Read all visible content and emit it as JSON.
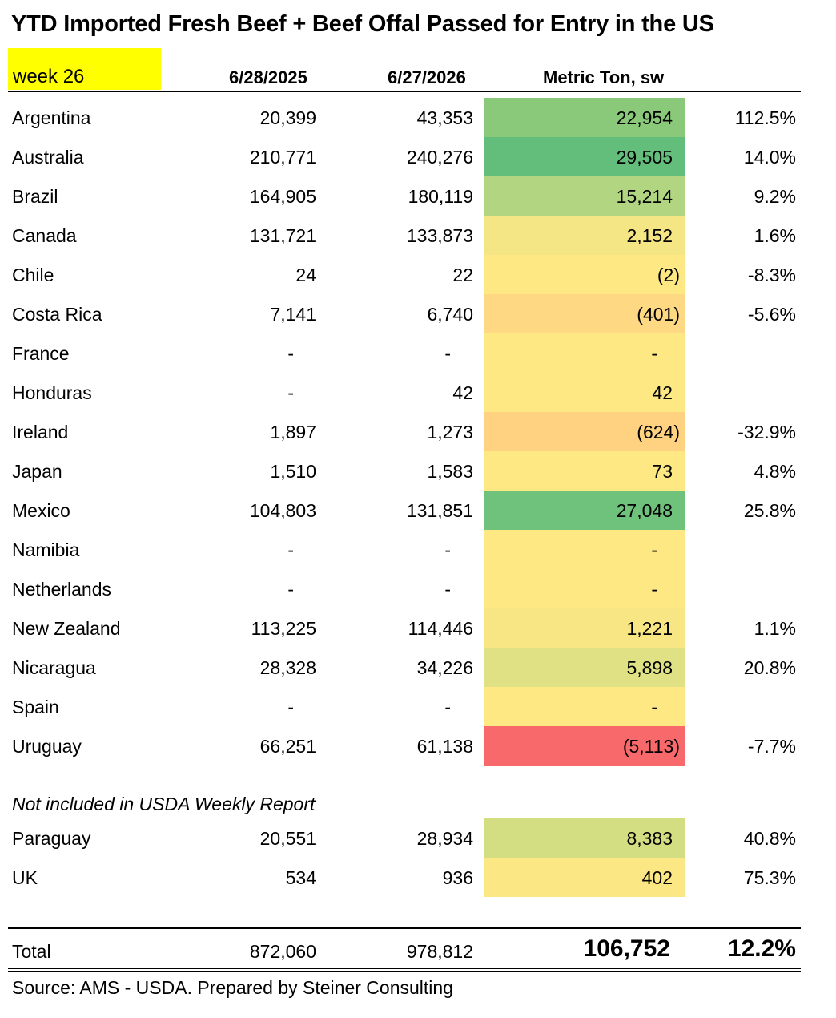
{
  "title": "YTD Imported Fresh Beef + Beef Offal Passed for Entry in the US",
  "week_label": "week 26",
  "headers": {
    "col1": "6/28/2025",
    "col2": "6/27/2026",
    "col3": "Metric Ton, sw"
  },
  "chart_data": {
    "type": "table",
    "title": "YTD Imported Fresh Beef + Beef Offal Passed for Entry in the US",
    "columns": [
      "",
      "6/28/2025",
      "6/27/2026",
      "Metric Ton, sw",
      ""
    ],
    "rows": [
      {
        "country": "Argentina",
        "y2025": "20,399",
        "y2026": "43,353",
        "change": "22,954",
        "pct": "112.5%",
        "color": "#8ac97a"
      },
      {
        "country": "Australia",
        "y2025": "210,771",
        "y2026": "240,276",
        "change": "29,505",
        "pct": "14.0%",
        "color": "#63be7b"
      },
      {
        "country": "Brazil",
        "y2025": "164,905",
        "y2026": "180,119",
        "change": "15,214",
        "pct": "9.2%",
        "color": "#b1d580"
      },
      {
        "country": "Canada",
        "y2025": "131,721",
        "y2026": "133,873",
        "change": "2,152",
        "pct": "1.6%",
        "color": "#f4e585"
      },
      {
        "country": "Chile",
        "y2025": "24",
        "y2026": "22",
        "change": "(2)",
        "pct": "-8.3%",
        "color": "#fde884"
      },
      {
        "country": "Costa Rica",
        "y2025": "7,141",
        "y2026": "6,740",
        "change": "(401)",
        "pct": "-5.6%",
        "color": "#fed882"
      },
      {
        "country": "France",
        "y2025": "-",
        "y2026": "-",
        "change": "-",
        "pct": "",
        "color": "#fde884"
      },
      {
        "country": "Honduras",
        "y2025": "-",
        "y2026": "42",
        "change": "42",
        "pct": "",
        "color": "#fde884"
      },
      {
        "country": "Ireland",
        "y2025": "1,897",
        "y2026": "1,273",
        "change": "(624)",
        "pct": "-32.9%",
        "color": "#fed281"
      },
      {
        "country": "Japan",
        "y2025": "1,510",
        "y2026": "1,583",
        "change": "73",
        "pct": "4.8%",
        "color": "#fde884"
      },
      {
        "country": "Mexico",
        "y2025": "104,803",
        "y2026": "131,851",
        "change": "27,048",
        "pct": "25.8%",
        "color": "#6fc27c"
      },
      {
        "country": "Namibia",
        "y2025": "-",
        "y2026": "-",
        "change": "-",
        "pct": "",
        "color": "#fde884"
      },
      {
        "country": "Netherlands",
        "y2025": "-",
        "y2026": "-",
        "change": "-",
        "pct": "",
        "color": "#fde884"
      },
      {
        "country": "New Zealand",
        "y2025": "113,225",
        "y2026": "114,446",
        "change": "1,221",
        "pct": "1.1%",
        "color": "#f8e685"
      },
      {
        "country": "Nicaragua",
        "y2025": "28,328",
        "y2026": "34,226",
        "change": "5,898",
        "pct": "20.8%",
        "color": "#dfe184"
      },
      {
        "country": "Spain",
        "y2025": "-",
        "y2026": "-",
        "change": "-",
        "pct": "",
        "color": "#fde884"
      },
      {
        "country": "Uruguay",
        "y2025": "66,251",
        "y2026": "61,138",
        "change": "(5,113)",
        "pct": "-7.7%",
        "color": "#f8696b"
      }
    ],
    "extra_note": "Not included in USDA Weekly Report",
    "extra_rows": [
      {
        "country": "Paraguay",
        "y2025": "20,551",
        "y2026": "28,934",
        "change": "8,383",
        "pct": "40.8%",
        "color": "#d3de82"
      },
      {
        "country": "UK",
        "y2025": "534",
        "y2026": "936",
        "change": "402",
        "pct": "75.3%",
        "color": "#fbe784"
      }
    ],
    "total": {
      "label": "Total",
      "y2025": "872,060",
      "y2026": "978,812",
      "change": "106,752",
      "pct": "12.2%"
    }
  },
  "source": "Source: AMS - USDA.  Prepared by Steiner Consulting"
}
